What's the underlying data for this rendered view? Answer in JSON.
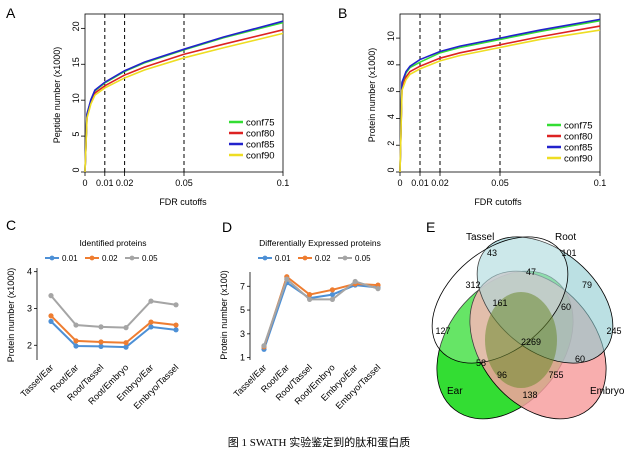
{
  "panel_labels": [
    "A",
    "B",
    "C",
    "D",
    "E"
  ],
  "chart_data": [
    {
      "panel": "A",
      "type": "line",
      "xlabel": "FDR cutoffs",
      "ylabel": "Peptide number (x1000)",
      "x_ticks": [
        "0",
        "0.01",
        "0.02",
        "0.05",
        "0.1"
      ],
      "y_ticks": [
        "0",
        "5",
        "10",
        "15",
        "20"
      ],
      "xlim": [
        0,
        0.1
      ],
      "ylim": [
        0,
        22
      ],
      "vlines": [
        0.01,
        0.02,
        0.05
      ],
      "legend_position": "bottom-right",
      "x": [
        0,
        0.001,
        0.003,
        0.005,
        0.01,
        0.02,
        0.03,
        0.05,
        0.07,
        0.1
      ],
      "series": [
        {
          "name": "conf75",
          "color": "#33dd33",
          "values": [
            0,
            8.0,
            10.0,
            11.3,
            12.4,
            14.0,
            15.2,
            17.0,
            18.7,
            20.8
          ]
        },
        {
          "name": "conf80",
          "color": "#dd2222",
          "values": [
            0,
            7.7,
            9.8,
            11.0,
            12.0,
            13.5,
            14.6,
            16.4,
            17.8,
            19.8
          ]
        },
        {
          "name": "conf85",
          "color": "#2222cc",
          "values": [
            0,
            8.1,
            10.1,
            11.4,
            12.5,
            14.1,
            15.3,
            17.1,
            18.8,
            21.0
          ]
        },
        {
          "name": "conf90",
          "color": "#eedd22",
          "values": [
            0,
            7.5,
            9.5,
            10.7,
            11.7,
            13.1,
            14.2,
            15.9,
            17.3,
            19.3
          ]
        }
      ]
    },
    {
      "panel": "B",
      "type": "line",
      "xlabel": "FDR cutoffs",
      "ylabel": "Protein number (x1000)",
      "x_ticks": [
        "0",
        "0.01",
        "0.02",
        "0.05",
        "0.1"
      ],
      "y_ticks": [
        "0",
        "2",
        "4",
        "6",
        "8",
        "10"
      ],
      "xlim": [
        0,
        0.1
      ],
      "ylim": [
        0,
        11.8
      ],
      "vlines": [
        0.01,
        0.02,
        0.05
      ],
      "legend_position": "bottom-right",
      "x": [
        0,
        0.001,
        0.003,
        0.005,
        0.01,
        0.02,
        0.03,
        0.05,
        0.07,
        0.1
      ],
      "series": [
        {
          "name": "conf75",
          "color": "#33dd33",
          "values": [
            0,
            6.6,
            7.4,
            7.8,
            8.2,
            8.9,
            9.3,
            9.9,
            10.5,
            11.3
          ]
        },
        {
          "name": "conf80",
          "color": "#dd2222",
          "values": [
            0,
            6.3,
            7.1,
            7.5,
            7.9,
            8.5,
            8.9,
            9.5,
            10.1,
            10.9
          ]
        },
        {
          "name": "conf85",
          "color": "#2222cc",
          "values": [
            0,
            6.7,
            7.5,
            7.9,
            8.4,
            9.0,
            9.4,
            10.0,
            10.6,
            11.4
          ]
        },
        {
          "name": "conf90",
          "color": "#eedd22",
          "values": [
            0,
            6.1,
            6.9,
            7.3,
            7.7,
            8.3,
            8.7,
            9.3,
            9.9,
            10.6
          ]
        }
      ]
    },
    {
      "panel": "C",
      "type": "line",
      "title": "Identified proteins",
      "ylabel": "Protein number (x1000)",
      "y_ticks": [
        "2",
        "3",
        "4"
      ],
      "ylim": [
        1.6,
        4.1
      ],
      "categories": [
        "Tassel/Ear",
        "Root/Ear",
        "Root/Tassel",
        "Root/Embryo",
        "Embryo/Ear",
        "Embryo/Tassel"
      ],
      "series": [
        {
          "name": "0.01",
          "color": "#4d90d6",
          "values": [
            2.65,
            1.98,
            1.97,
            1.95,
            2.5,
            2.42
          ]
        },
        {
          "name": "0.02",
          "color": "#ee7d31",
          "values": [
            2.8,
            2.12,
            2.09,
            2.07,
            2.63,
            2.55
          ]
        },
        {
          "name": "0.05",
          "color": "#a5a5a5",
          "values": [
            3.35,
            2.55,
            2.5,
            2.48,
            3.2,
            3.1
          ]
        }
      ]
    },
    {
      "panel": "D",
      "type": "line",
      "title": "Differentially Expressed proteins",
      "ylabel": "Protein number (x100)",
      "y_ticks": [
        "1",
        "3",
        "5",
        "7"
      ],
      "ylim": [
        0.8,
        8.2
      ],
      "categories": [
        "Tassel/Ear",
        "Root/Ear",
        "Root/Tassel",
        "Root/Embryo",
        "Embryo/Ear",
        "Embryo/Tassel"
      ],
      "series": [
        {
          "name": "0.01",
          "color": "#4d90d6",
          "values": [
            1.7,
            7.3,
            6.0,
            6.3,
            7.1,
            6.9
          ]
        },
        {
          "name": "0.02",
          "color": "#ee7d31",
          "values": [
            1.9,
            7.8,
            6.3,
            6.7,
            7.2,
            7.1
          ]
        },
        {
          "name": "0.05",
          "color": "#a5a5a5",
          "values": [
            2.0,
            7.6,
            5.9,
            5.9,
            7.4,
            6.8
          ]
        }
      ]
    }
  ],
  "venn": {
    "sets": [
      {
        "name": "Tassel",
        "color": "#ffffff"
      },
      {
        "name": "Root",
        "color": "#8ecbd0"
      },
      {
        "name": "Ear",
        "color": "#33dd33"
      },
      {
        "name": "Embryo",
        "color": "#f7a0a0"
      }
    ],
    "values": {
      "T": "43",
      "R": "101",
      "TR": "47",
      "TE": "312",
      "TRE": "161",
      "TRM": "60",
      "RM": "79",
      "E": "127",
      "M": "245",
      "TREM": "2269",
      "TEM_low": "96",
      "EM": "755",
      "EMb": "138",
      "RMb": "60",
      "Eb": "58"
    }
  },
  "caption": "图 1   SWATH 实验鉴定到的肽和蛋白质"
}
